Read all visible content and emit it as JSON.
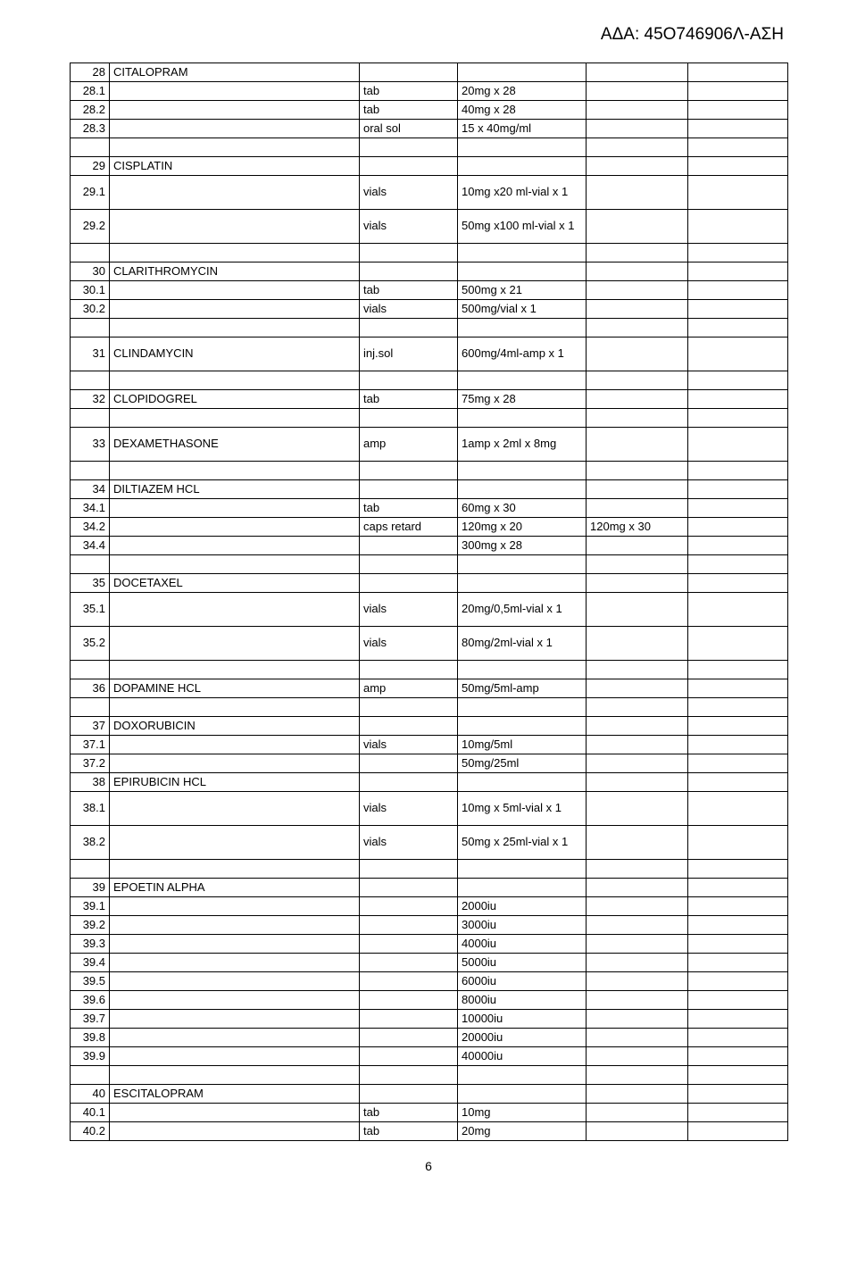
{
  "header": "ΑΔΑ: 45Ο746906Λ-ΑΣΗ",
  "page_number": "6",
  "rows": [
    {
      "c1": "28",
      "c2": "CITALOPRAM",
      "c3": "",
      "c4": "",
      "c5": "",
      "c6": "",
      "align1": "num"
    },
    {
      "c1": "28.1",
      "c2": "",
      "c3": "tab",
      "c4": "20mg x 28",
      "c5": "",
      "c6": "",
      "align1": "num"
    },
    {
      "c1": "28.2",
      "c2": "",
      "c3": "tab",
      "c4": "40mg x 28",
      "c5": "",
      "c6": "",
      "align1": "num"
    },
    {
      "c1": "28.3",
      "c2": "",
      "c3": "oral sol",
      "c4": "15 x 40mg/ml",
      "c5": "",
      "c6": "",
      "align1": "num"
    },
    {
      "c1": "",
      "c2": "",
      "c3": "",
      "c4": "",
      "c5": "",
      "c6": ""
    },
    {
      "c1": "29",
      "c2": "CISPLATIN",
      "c3": "",
      "c4": "",
      "c5": "",
      "c6": "",
      "align1": "num"
    },
    {
      "c1": "29.1",
      "c2": "",
      "c3": "vials",
      "c4": "10mg x20 ml-vial x 1",
      "c5": "",
      "c6": "",
      "align1": "num",
      "multi": true
    },
    {
      "c1": "29.2",
      "c2": "",
      "c3": "vials",
      "c4": "50mg x100 ml-vial x 1",
      "c5": "",
      "c6": "",
      "align1": "num",
      "multi": true
    },
    {
      "c1": "",
      "c2": "",
      "c3": "",
      "c4": "",
      "c5": "",
      "c6": ""
    },
    {
      "c1": "30",
      "c2": "CLARITHROMYCIN",
      "c3": "",
      "c4": "",
      "c5": "",
      "c6": "",
      "align1": "num"
    },
    {
      "c1": "30.1",
      "c2": "",
      "c3": "tab",
      "c4": "500mg x 21",
      "c5": "",
      "c6": "",
      "align1": "num"
    },
    {
      "c1": "30.2",
      "c2": "",
      "c3": "vials",
      "c4": "500mg/vial x 1",
      "c5": "",
      "c6": "",
      "align1": "num"
    },
    {
      "c1": "",
      "c2": "",
      "c3": "",
      "c4": "",
      "c5": "",
      "c6": ""
    },
    {
      "c1": "31",
      "c2": "CLINDAMYCIN",
      "c3": "inj.sol",
      "c4": "600mg/4ml-amp x 1",
      "c5": "",
      "c6": "",
      "align1": "num",
      "multi": true
    },
    {
      "c1": "",
      "c2": "",
      "c3": "",
      "c4": "",
      "c5": "",
      "c6": ""
    },
    {
      "c1": "32",
      "c2": "CLOPIDOGREL",
      "c3": "tab",
      "c4": "75mg x 28",
      "c5": "",
      "c6": "",
      "align1": "num"
    },
    {
      "c1": "",
      "c2": "",
      "c3": "",
      "c4": "",
      "c5": "",
      "c6": ""
    },
    {
      "c1": "33",
      "c2": "DEXAMETHASONE",
      "c3": "amp",
      "c4": "1amp x 2ml x 8mg",
      "c5": "",
      "c6": "",
      "align1": "num",
      "multi": true
    },
    {
      "c1": "",
      "c2": "",
      "c3": "",
      "c4": "",
      "c5": "",
      "c6": ""
    },
    {
      "c1": "34",
      "c2": "DILTIAZEM HCL",
      "c3": "",
      "c4": "",
      "c5": "",
      "c6": "",
      "align1": "num"
    },
    {
      "c1": "34.1",
      "c2": "",
      "c3": "tab",
      "c4": "60mg x 30",
      "c5": "",
      "c6": "",
      "align1": "num"
    },
    {
      "c1": "34.2",
      "c2": "",
      "c3": "caps retard",
      "c4": "120mg x 20",
      "c5": "120mg x 30",
      "c6": "",
      "align1": "num"
    },
    {
      "c1": "34.4",
      "c2": "",
      "c3": "",
      "c4": "300mg x 28",
      "c5": "",
      "c6": "",
      "align1": "num"
    },
    {
      "c1": "",
      "c2": "",
      "c3": "",
      "c4": "",
      "c5": "",
      "c6": ""
    },
    {
      "c1": "35",
      "c2": "DOCETAXEL",
      "c3": "",
      "c4": "",
      "c5": "",
      "c6": "",
      "align1": "num"
    },
    {
      "c1": "35.1",
      "c2": "",
      "c3": "vials",
      "c4": "20mg/0,5ml-vial x 1",
      "c5": "",
      "c6": "",
      "align1": "num",
      "multi": true
    },
    {
      "c1": "35.2",
      "c2": "",
      "c3": "vials",
      "c4": "80mg/2ml-vial x 1",
      "c5": "",
      "c6": "",
      "align1": "num",
      "multi": true
    },
    {
      "c1": "",
      "c2": "",
      "c3": "",
      "c4": "",
      "c5": "",
      "c6": ""
    },
    {
      "c1": "36",
      "c2": "DOPAMINE HCL",
      "c3": "amp",
      "c4": "50mg/5ml-amp",
      "c5": "",
      "c6": "",
      "align1": "num"
    },
    {
      "c1": "",
      "c2": "",
      "c3": "",
      "c4": "",
      "c5": "",
      "c6": ""
    },
    {
      "c1": "37",
      "c2": "DOXORUBICIN",
      "c3": "",
      "c4": "",
      "c5": "",
      "c6": "",
      "align1": "num"
    },
    {
      "c1": "37.1",
      "c2": "",
      "c3": "vials",
      "c4": "10mg/5ml",
      "c5": "",
      "c6": "",
      "align1": "num"
    },
    {
      "c1": "37.2",
      "c2": "",
      "c3": "",
      "c4": "50mg/25ml",
      "c5": "",
      "c6": "",
      "align1": "num"
    },
    {
      "c1": "38",
      "c2": "EPIRUBICIN HCL",
      "c3": "",
      "c4": "",
      "c5": "",
      "c6": "",
      "align1": "num"
    },
    {
      "c1": "38.1",
      "c2": "",
      "c3": "vials",
      "c4": "10mg x 5ml-vial x 1",
      "c5": "",
      "c6": "",
      "align1": "num",
      "multi": true
    },
    {
      "c1": "38.2",
      "c2": "",
      "c3": "vials",
      "c4": "50mg x 25ml-vial x 1",
      "c5": "",
      "c6": "",
      "align1": "num",
      "multi": true
    },
    {
      "c1": "",
      "c2": "",
      "c3": "",
      "c4": "",
      "c5": "",
      "c6": ""
    },
    {
      "c1": "39",
      "c2": "EPOETIN ALPHA",
      "c3": "",
      "c4": "",
      "c5": "",
      "c6": "",
      "align1": "num"
    },
    {
      "c1": "39.1",
      "c2": "",
      "c3": "",
      "c4": "2000iu",
      "c5": "",
      "c6": "",
      "align1": "num"
    },
    {
      "c1": "39.2",
      "c2": "",
      "c3": "",
      "c4": "3000iu",
      "c5": "",
      "c6": "",
      "align1": "num"
    },
    {
      "c1": "39.3",
      "c2": "",
      "c3": "",
      "c4": "4000iu",
      "c5": "",
      "c6": "",
      "align1": "num"
    },
    {
      "c1": "39.4",
      "c2": "",
      "c3": "",
      "c4": "5000iu",
      "c5": "",
      "c6": "",
      "align1": "num"
    },
    {
      "c1": "39.5",
      "c2": "",
      "c3": "",
      "c4": "6000iu",
      "c5": "",
      "c6": "",
      "align1": "num"
    },
    {
      "c1": "39.6",
      "c2": "",
      "c3": "",
      "c4": "8000iu",
      "c5": "",
      "c6": "",
      "align1": "num"
    },
    {
      "c1": "39.7",
      "c2": "",
      "c3": "",
      "c4": "10000iu",
      "c5": "",
      "c6": "",
      "align1": "num"
    },
    {
      "c1": "39.8",
      "c2": "",
      "c3": "",
      "c4": "20000iu",
      "c5": "",
      "c6": "",
      "align1": "num"
    },
    {
      "c1": "39.9",
      "c2": "",
      "c3": "",
      "c4": "40000iu",
      "c5": "",
      "c6": "",
      "align1": "num"
    },
    {
      "c1": "",
      "c2": "",
      "c3": "",
      "c4": "",
      "c5": "",
      "c6": ""
    },
    {
      "c1": "40",
      "c2": "ESCITALOPRAM",
      "c3": "",
      "c4": "",
      "c5": "",
      "c6": "",
      "align1": "num"
    },
    {
      "c1": "40.1",
      "c2": "",
      "c3": "tab",
      "c4": "10mg",
      "c5": "",
      "c6": "",
      "align1": "num"
    },
    {
      "c1": "40.2",
      "c2": "",
      "c3": "tab",
      "c4": "20mg",
      "c5": "",
      "c6": "",
      "align1": "num"
    }
  ]
}
